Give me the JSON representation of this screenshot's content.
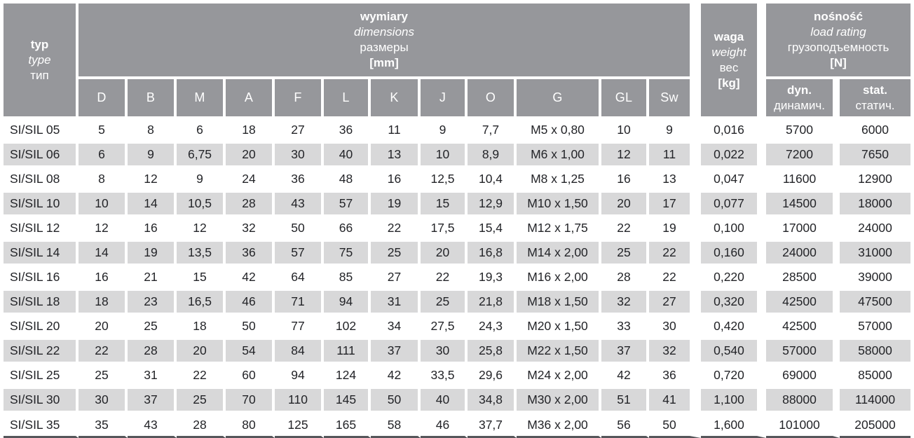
{
  "header": {
    "type_col": {
      "pl": "typ",
      "en": "type",
      "ru": "тип"
    },
    "dimensions": {
      "pl": "wymiary",
      "en": "dimensions",
      "ru": "размеры",
      "unit": "[mm]"
    },
    "weight_col": {
      "pl": "waga",
      "en": "weight",
      "ru": "вес",
      "unit": "[kg]"
    },
    "load_rating": {
      "pl": "nośność",
      "en": "load rating",
      "ru": "грузоподъемность",
      "unit": "[N]"
    },
    "dim_columns": [
      "D",
      "B",
      "M",
      "A",
      "F",
      "L",
      "K",
      "J",
      "O",
      "G",
      "GL",
      "Sw"
    ],
    "dyn_col": {
      "en": "dyn.",
      "ru": "динамич."
    },
    "stat_col": {
      "en": "stat.",
      "ru": "статич."
    }
  },
  "rows": [
    {
      "typ": "SI/SIL 05",
      "dims": [
        "5",
        "8",
        "6",
        "18",
        "27",
        "36",
        "11",
        "9",
        "7,7",
        "M5 x 0,80",
        "10",
        "9"
      ],
      "weight": "0,016",
      "dyn": "5700",
      "stat": "6000"
    },
    {
      "typ": "SI/SIL 06",
      "dims": [
        "6",
        "9",
        "6,75",
        "20",
        "30",
        "40",
        "13",
        "10",
        "8,9",
        "M6 x 1,00",
        "12",
        "11"
      ],
      "weight": "0,022",
      "dyn": "7200",
      "stat": "7650"
    },
    {
      "typ": "SI/SIL 08",
      "dims": [
        "8",
        "12",
        "9",
        "24",
        "36",
        "48",
        "16",
        "12,5",
        "10,4",
        "M8 x 1,25",
        "16",
        "13"
      ],
      "weight": "0,047",
      "dyn": "11600",
      "stat": "12900"
    },
    {
      "typ": "SI/SIL 10",
      "dims": [
        "10",
        "14",
        "10,5",
        "28",
        "43",
        "57",
        "19",
        "15",
        "12,9",
        "M10 x 1,50",
        "20",
        "17"
      ],
      "weight": "0,077",
      "dyn": "14500",
      "stat": "18000"
    },
    {
      "typ": "SI/SIL 12",
      "dims": [
        "12",
        "16",
        "12",
        "32",
        "50",
        "66",
        "22",
        "17,5",
        "15,4",
        "M12 x 1,75",
        "22",
        "19"
      ],
      "weight": "0,100",
      "dyn": "17000",
      "stat": "24000"
    },
    {
      "typ": "SI/SIL 14",
      "dims": [
        "14",
        "19",
        "13,5",
        "36",
        "57",
        "75",
        "25",
        "20",
        "16,8",
        "M14 x 2,00",
        "25",
        "22"
      ],
      "weight": "0,160",
      "dyn": "24000",
      "stat": "31000"
    },
    {
      "typ": "SI/SIL 16",
      "dims": [
        "16",
        "21",
        "15",
        "42",
        "64",
        "85",
        "27",
        "22",
        "19,3",
        "M16 x 2,00",
        "28",
        "22"
      ],
      "weight": "0,220",
      "dyn": "28500",
      "stat": "39000"
    },
    {
      "typ": "SI/SIL 18",
      "dims": [
        "18",
        "23",
        "16,5",
        "46",
        "71",
        "94",
        "31",
        "25",
        "21,8",
        "M18 x 1,50",
        "32",
        "27"
      ],
      "weight": "0,320",
      "dyn": "42500",
      "stat": "47500"
    },
    {
      "typ": "SI/SIL 20",
      "dims": [
        "20",
        "25",
        "18",
        "50",
        "77",
        "102",
        "34",
        "27,5",
        "24,3",
        "M20 x 1,50",
        "33",
        "30"
      ],
      "weight": "0,420",
      "dyn": "42500",
      "stat": "57000"
    },
    {
      "typ": "SI/SIL 22",
      "dims": [
        "22",
        "28",
        "20",
        "54",
        "84",
        "111",
        "37",
        "30",
        "25,8",
        "M22 x 1,50",
        "37",
        "32"
      ],
      "weight": "0,540",
      "dyn": "57000",
      "stat": "58000"
    },
    {
      "typ": "SI/SIL 25",
      "dims": [
        "25",
        "31",
        "22",
        "60",
        "94",
        "124",
        "42",
        "33,5",
        "29,6",
        "M24 x 2,00",
        "42",
        "36"
      ],
      "weight": "0,720",
      "dyn": "69000",
      "stat": "85000"
    },
    {
      "typ": "SI/SIL 30",
      "dims": [
        "30",
        "37",
        "25",
        "70",
        "110",
        "145",
        "50",
        "40",
        "34,8",
        "M30 x 2,00",
        "51",
        "41"
      ],
      "weight": "1,100",
      "dyn": "88000",
      "stat": "114000"
    },
    {
      "typ": "SI/SIL 35",
      "dims": [
        "35",
        "43",
        "28",
        "80",
        "125",
        "165",
        "58",
        "46",
        "37,7",
        "M36 x 2,00",
        "56",
        "50"
      ],
      "weight": "1,600",
      "dyn": "101000",
      "stat": "205000"
    }
  ],
  "colors": {
    "header_bg": "#96979b",
    "header_text": "#ffffff",
    "row_stripe": "#d8d8d9",
    "separator": "#ffffff",
    "bottom_line": "#55565a",
    "data_text": "#232428"
  }
}
